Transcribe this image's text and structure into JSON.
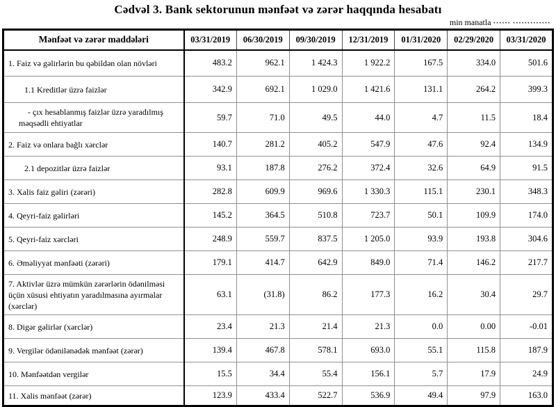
{
  "title": "Cədvəl 3. Bank sektorunun mənfəət və zərər haqqında hesabatı",
  "unit_label": "min manatla",
  "unit_dots": "······ ·············",
  "table": {
    "header": [
      "Mənfəət və zərər maddələri",
      "03/31/2019",
      "06/30/2019",
      "09/30/2019",
      "12/31/2019",
      "01/31/2020",
      "02/29/2020",
      "03/31/2020"
    ],
    "rows": [
      {
        "label": "1. Faiz və gəlirlərin bu qəbildən olan növləri",
        "level": 0,
        "values": [
          "483.2",
          "962.1",
          "1 424.3",
          "1 922.2",
          "167.5",
          "334.0",
          "501.6"
        ]
      },
      {
        "label": "1.1 Kreditlər üzrə faizlər",
        "level": 1,
        "values": [
          "342.9",
          "692.1",
          "1 029.0",
          "1 421.6",
          "131.1",
          "264.2",
          "399.3"
        ]
      },
      {
        "label": "-  çıx hesablanmış faizlər üzrə yaradılmış məqsədli ehtiyatlar",
        "level": 2,
        "values": [
          "59.7",
          "71.0",
          "49.5",
          "44.0",
          "4.7",
          "11.5",
          "18.4"
        ]
      },
      {
        "label": "2. Faiz və onlara bağlı xərclər",
        "level": 0,
        "values": [
          "140.7",
          "281.2",
          "405.2",
          "547.9",
          "47.6",
          "92.4",
          "134.9"
        ]
      },
      {
        "label": "2.1 depozitlər üzrə faizlər",
        "level": 1,
        "values": [
          "93.1",
          "187.8",
          "276.2",
          "372.4",
          "32.6",
          "64.9",
          "91.5"
        ]
      },
      {
        "label": "3. Xalis faiz gəliri (zərəri)",
        "level": 0,
        "values": [
          "282.8",
          "609.9",
          "969.6",
          "1 330.3",
          "115.1",
          "230.1",
          "348.3"
        ]
      },
      {
        "label": "4. Qeyri-faiz gəlirləri",
        "level": 0,
        "values": [
          "145.2",
          "364.5",
          "510.8",
          "723.7",
          "50.1",
          "109.9",
          "174.0"
        ]
      },
      {
        "label": "5. Qeyri-faiz xərcləri",
        "level": 0,
        "values": [
          "248.9",
          "559.7",
          "837.5",
          "1 205.0",
          "93.9",
          "193.8",
          "304.6"
        ]
      },
      {
        "label": "6. Əməliyyat mənfəəti (zərəri)",
        "level": 0,
        "values": [
          "179.1",
          "414.7",
          "642.9",
          "849.0",
          "71.4",
          "146.2",
          "217.7"
        ]
      },
      {
        "label": "7. Aktivlər üzrə mümkün zərərlərin ödənilməsi üçün xüsusi ehtiyatın yaradılmasına ayırmalar (xərclər)",
        "level": 0,
        "values": [
          "63.1",
          "(31.8)",
          "86.2",
          "177.3",
          "16.2",
          "30.4",
          "29.7"
        ]
      },
      {
        "label": "8. Digər gəlirlər (xərclər)",
        "level": 0,
        "values": [
          "23.4",
          "21.3",
          "21.4",
          "21.3",
          "0.0",
          "0.00",
          "-0.01"
        ]
      },
      {
        "label": "9. Vergilər ödənilənədək mənfəət (zərər)",
        "level": 0,
        "values": [
          "139.4",
          "467.8",
          "578.1",
          "693.0",
          "55.1",
          "115.8",
          "187.9"
        ]
      },
      {
        "label": "10. Mənfəətdən vergilər",
        "level": 0,
        "values": [
          "15.5",
          "34.4",
          "55.4",
          "156.1",
          "5.7",
          "17.9",
          "24.9"
        ]
      },
      {
        "label": "11. Xalis mənfəət (zərər)",
        "level": 0,
        "values": [
          "123.9",
          "433.4",
          "522.7",
          "536.9",
          "49.4",
          "97.9",
          "163.0"
        ]
      }
    ]
  }
}
